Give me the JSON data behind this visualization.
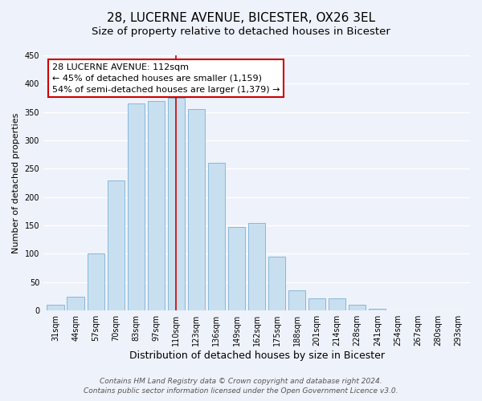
{
  "title": "28, LUCERNE AVENUE, BICESTER, OX26 3EL",
  "subtitle": "Size of property relative to detached houses in Bicester",
  "xlabel": "Distribution of detached houses by size in Bicester",
  "ylabel": "Number of detached properties",
  "bar_labels": [
    "31sqm",
    "44sqm",
    "57sqm",
    "70sqm",
    "83sqm",
    "97sqm",
    "110sqm",
    "123sqm",
    "136sqm",
    "149sqm",
    "162sqm",
    "175sqm",
    "188sqm",
    "201sqm",
    "214sqm",
    "228sqm",
    "241sqm",
    "254sqm",
    "267sqm",
    "280sqm",
    "293sqm"
  ],
  "bar_values": [
    10,
    25,
    100,
    230,
    365,
    370,
    375,
    355,
    260,
    148,
    155,
    95,
    35,
    22,
    22,
    10,
    3,
    1,
    1,
    0,
    1
  ],
  "bar_color": "#c8dff0",
  "bar_edge_color": "#88b8d8",
  "highlight_line_index": 6,
  "highlight_line_color": "#cc0000",
  "annotation_line1": "28 LUCERNE AVENUE: 112sqm",
  "annotation_line2": "← 45% of detached houses are smaller (1,159)",
  "annotation_line3": "54% of semi-detached houses are larger (1,379) →",
  "annotation_box_facecolor": "white",
  "annotation_box_edgecolor": "#cc0000",
  "ylim": [
    0,
    450
  ],
  "yticks": [
    0,
    50,
    100,
    150,
    200,
    250,
    300,
    350,
    400,
    450
  ],
  "footnote1": "Contains HM Land Registry data © Crown copyright and database right 2024.",
  "footnote2": "Contains public sector information licensed under the Open Government Licence v3.0.",
  "background_color": "#eef2fa",
  "grid_color": "white",
  "title_fontsize": 11,
  "subtitle_fontsize": 9.5,
  "xlabel_fontsize": 9,
  "ylabel_fontsize": 8,
  "tick_fontsize": 7,
  "annotation_fontsize": 8,
  "footnote_fontsize": 6.5
}
